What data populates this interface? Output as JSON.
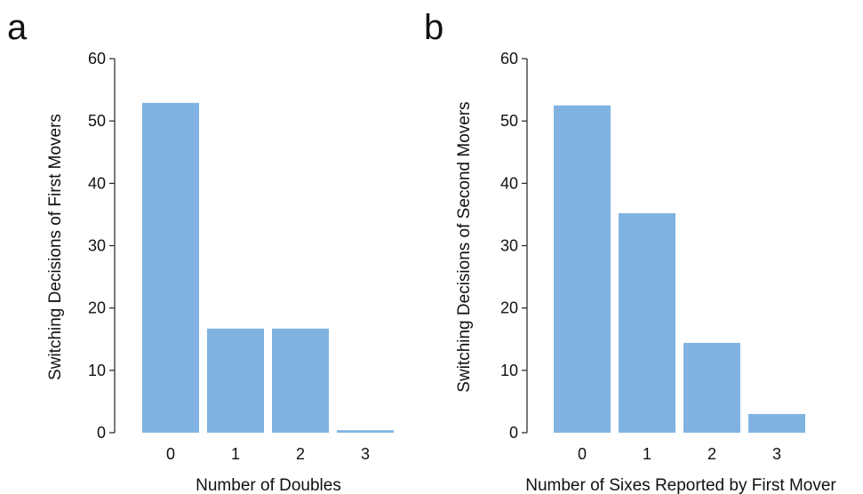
{
  "colors": {
    "bar": "#80b3e1",
    "axis": "#222222",
    "text": "#111111"
  },
  "chart_data": [
    {
      "panel": "a",
      "type": "bar",
      "categories": [
        "0",
        "1",
        "2",
        "3"
      ],
      "values": [
        52.9,
        16.7,
        16.7,
        0.4
      ],
      "xlabel": "Number of Doubles",
      "ylabel": "Switching Decisions of First Movers",
      "yticks": [
        0,
        10,
        20,
        30,
        40,
        50,
        60
      ],
      "ylim": [
        0,
        60
      ],
      "grid": false
    },
    {
      "panel": "b",
      "type": "bar",
      "categories": [
        "0",
        "1",
        "2",
        "3"
      ],
      "values": [
        52.5,
        35.2,
        14.4,
        3.0
      ],
      "xlabel": "Number of Sixes Reported by First Mover",
      "ylabel": "Switching Decisions of Second Movers",
      "yticks": [
        0,
        10,
        20,
        30,
        40,
        50,
        60
      ],
      "ylim": [
        0,
        60
      ],
      "grid": false
    }
  ]
}
